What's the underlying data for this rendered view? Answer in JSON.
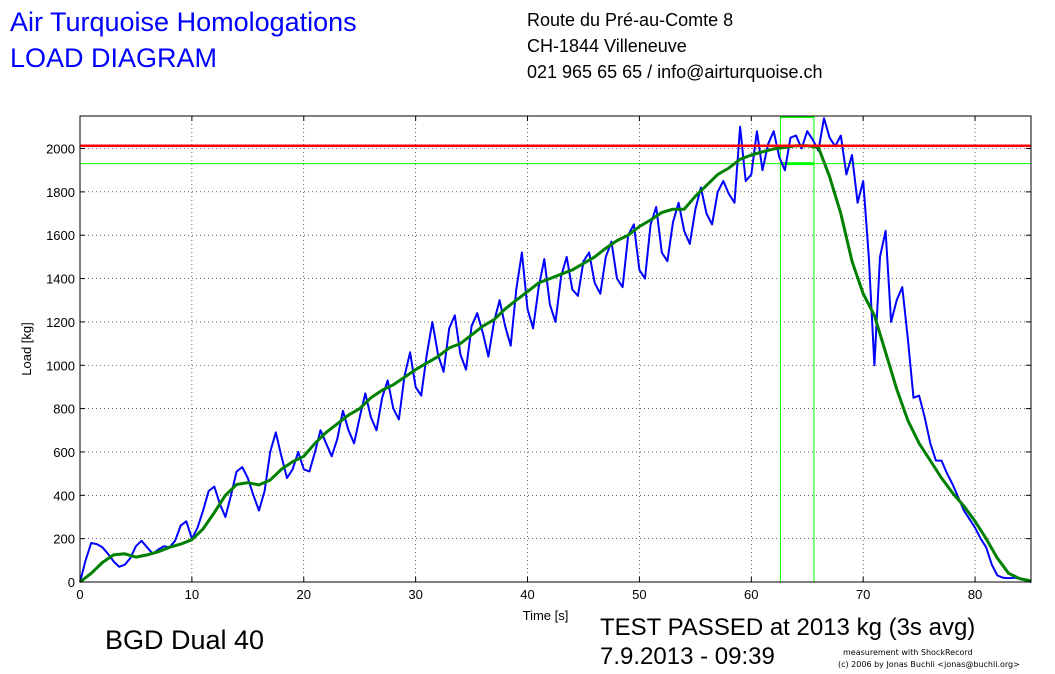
{
  "header": {
    "title_line1": "Air Turquoise Homologations",
    "title_line2": "LOAD DIAGRAM",
    "address_line1": "Route du Pré-au-Comte 8",
    "address_line2": "CH-1844 Villeneuve",
    "address_line3": "021 965 65 65 / info@airturquoise.ch"
  },
  "footer": {
    "glider_name": "BGD Dual 40",
    "result": "TEST PASSED at 2013 kg (3s avg)",
    "datetime": "7.9.2013 - 09:39",
    "credit_line1": "measurement with ShockRecord",
    "credit_line2": "(c) 2006 by Jonas Buchli <jonas@buchli.org>"
  },
  "chart_data": {
    "type": "line",
    "xlabel": "Time [s]",
    "ylabel": "Load [kg]",
    "xlim": [
      0,
      85
    ],
    "ylim": [
      0,
      2150
    ],
    "xticks": [
      0,
      10,
      20,
      30,
      40,
      50,
      60,
      70,
      80
    ],
    "yticks": [
      0,
      200,
      400,
      600,
      800,
      1000,
      1200,
      1400,
      1600,
      1800,
      2000
    ],
    "grid": true,
    "reference_lines": {
      "target_load": 2013,
      "lower_limit": 1930,
      "window_start": 62.6,
      "window_end": 65.6,
      "window_top": 2150
    },
    "series": [
      {
        "color": "#0000ff",
        "x": [
          0,
          0.5,
          1,
          1.5,
          2,
          2.5,
          3,
          3.5,
          4,
          4.5,
          5,
          5.5,
          6,
          6.5,
          7,
          7.5,
          8,
          8.5,
          9,
          9.5,
          10,
          10.5,
          11,
          11.5,
          12,
          12.5,
          13,
          13.5,
          14,
          14.5,
          15,
          15.5,
          16,
          16.5,
          17,
          17.5,
          18,
          18.5,
          19,
          19.5,
          20,
          20.5,
          21,
          21.5,
          22,
          22.5,
          23,
          23.5,
          24,
          24.5,
          25,
          25.5,
          26,
          26.5,
          27,
          27.5,
          28,
          28.5,
          29,
          29.5,
          30,
          30.5,
          31,
          31.5,
          32,
          32.5,
          33,
          33.5,
          34,
          34.5,
          35,
          35.5,
          36,
          36.5,
          37,
          37.5,
          38,
          38.5,
          39,
          39.5,
          40,
          40.5,
          41,
          41.5,
          42,
          42.5,
          43,
          43.5,
          44,
          44.5,
          45,
          45.5,
          46,
          46.5,
          47,
          47.5,
          48,
          48.5,
          49,
          49.5,
          50,
          50.5,
          51,
          51.5,
          52,
          52.5,
          53,
          53.5,
          54,
          54.5,
          55,
          55.5,
          56,
          56.5,
          57,
          57.5,
          58,
          58.5,
          59,
          59.5,
          60,
          60.5,
          61,
          61.5,
          62,
          62.5,
          63,
          63.5,
          64,
          64.5,
          65,
          65.5,
          66,
          66.5,
          67,
          67.5,
          68,
          68.5,
          69,
          69.5,
          70,
          70.5,
          71,
          71.5,
          72,
          72.5,
          73,
          73.5,
          74,
          74.5,
          75,
          75.5,
          76,
          76.5,
          77,
          77.5,
          78,
          78.5,
          79,
          79.5,
          80,
          80.5,
          81,
          81.5,
          82,
          82.5,
          83,
          83.5,
          84,
          85
        ],
        "values": [
          0,
          100,
          180,
          175,
          160,
          130,
          95,
          70,
          80,
          110,
          165,
          190,
          160,
          130,
          150,
          165,
          160,
          190,
          260,
          280,
          200,
          250,
          330,
          420,
          440,
          360,
          300,
          400,
          510,
          530,
          480,
          400,
          330,
          420,
          600,
          690,
          580,
          480,
          520,
          600,
          520,
          510,
          600,
          700,
          640,
          580,
          660,
          790,
          700,
          640,
          760,
          870,
          760,
          700,
          850,
          930,
          800,
          750,
          950,
          1060,
          900,
          860,
          1050,
          1200,
          1050,
          970,
          1170,
          1230,
          1050,
          980,
          1180,
          1240,
          1150,
          1040,
          1200,
          1300,
          1180,
          1090,
          1350,
          1520,
          1260,
          1170,
          1360,
          1490,
          1280,
          1200,
          1410,
          1500,
          1350,
          1320,
          1480,
          1520,
          1380,
          1330,
          1500,
          1570,
          1400,
          1360,
          1600,
          1650,
          1440,
          1400,
          1650,
          1730,
          1520,
          1480,
          1660,
          1750,
          1620,
          1560,
          1720,
          1820,
          1700,
          1650,
          1800,
          1850,
          1790,
          1750,
          2100,
          1850,
          1880,
          2080,
          1900,
          2020,
          2080,
          1960,
          1900,
          2050,
          2060,
          2000,
          2080,
          2040,
          1990,
          2140,
          2050,
          2010,
          2060,
          1880,
          1970,
          1750,
          1850,
          1500,
          1000,
          1500,
          1620,
          1200,
          1300,
          1360,
          1120,
          850,
          860,
          760,
          640,
          560,
          560,
          500,
          450,
          390,
          330,
          290,
          250,
          200,
          160,
          80,
          30,
          20,
          18,
          20,
          15,
          0
        ]
      },
      {
        "color": "#008000",
        "x": [
          0,
          1,
          2,
          3,
          4,
          5,
          6,
          7,
          8,
          9,
          10,
          11,
          12,
          13,
          14,
          15,
          16,
          17,
          18,
          19,
          20,
          21,
          22,
          23,
          24,
          25,
          26,
          27,
          28,
          29,
          30,
          31,
          32,
          33,
          34,
          35,
          36,
          37,
          38,
          39,
          40,
          41,
          42,
          43,
          44,
          45,
          46,
          47,
          48,
          49,
          50,
          51,
          52,
          53,
          54,
          55,
          56,
          57,
          58,
          59,
          60,
          61,
          62,
          63,
          64,
          65,
          66,
          67,
          68,
          69,
          70,
          71,
          72,
          73,
          74,
          75,
          76,
          77,
          78,
          79,
          80,
          81,
          82,
          83,
          84,
          85
        ],
        "values": [
          0,
          40,
          90,
          125,
          130,
          115,
          125,
          140,
          160,
          175,
          195,
          245,
          320,
          400,
          450,
          458,
          448,
          470,
          520,
          555,
          580,
          640,
          690,
          730,
          770,
          800,
          850,
          885,
          910,
          945,
          980,
          1010,
          1040,
          1080,
          1100,
          1140,
          1180,
          1210,
          1260,
          1300,
          1340,
          1380,
          1400,
          1420,
          1440,
          1470,
          1500,
          1540,
          1575,
          1600,
          1640,
          1670,
          1705,
          1720,
          1720,
          1780,
          1830,
          1880,
          1910,
          1950,
          1970,
          1985,
          1998,
          2005,
          2013,
          2013,
          2005,
          1870,
          1700,
          1480,
          1330,
          1230,
          1060,
          890,
          745,
          640,
          560,
          480,
          410,
          350,
          280,
          200,
          110,
          40,
          15,
          5
        ]
      }
    ]
  }
}
